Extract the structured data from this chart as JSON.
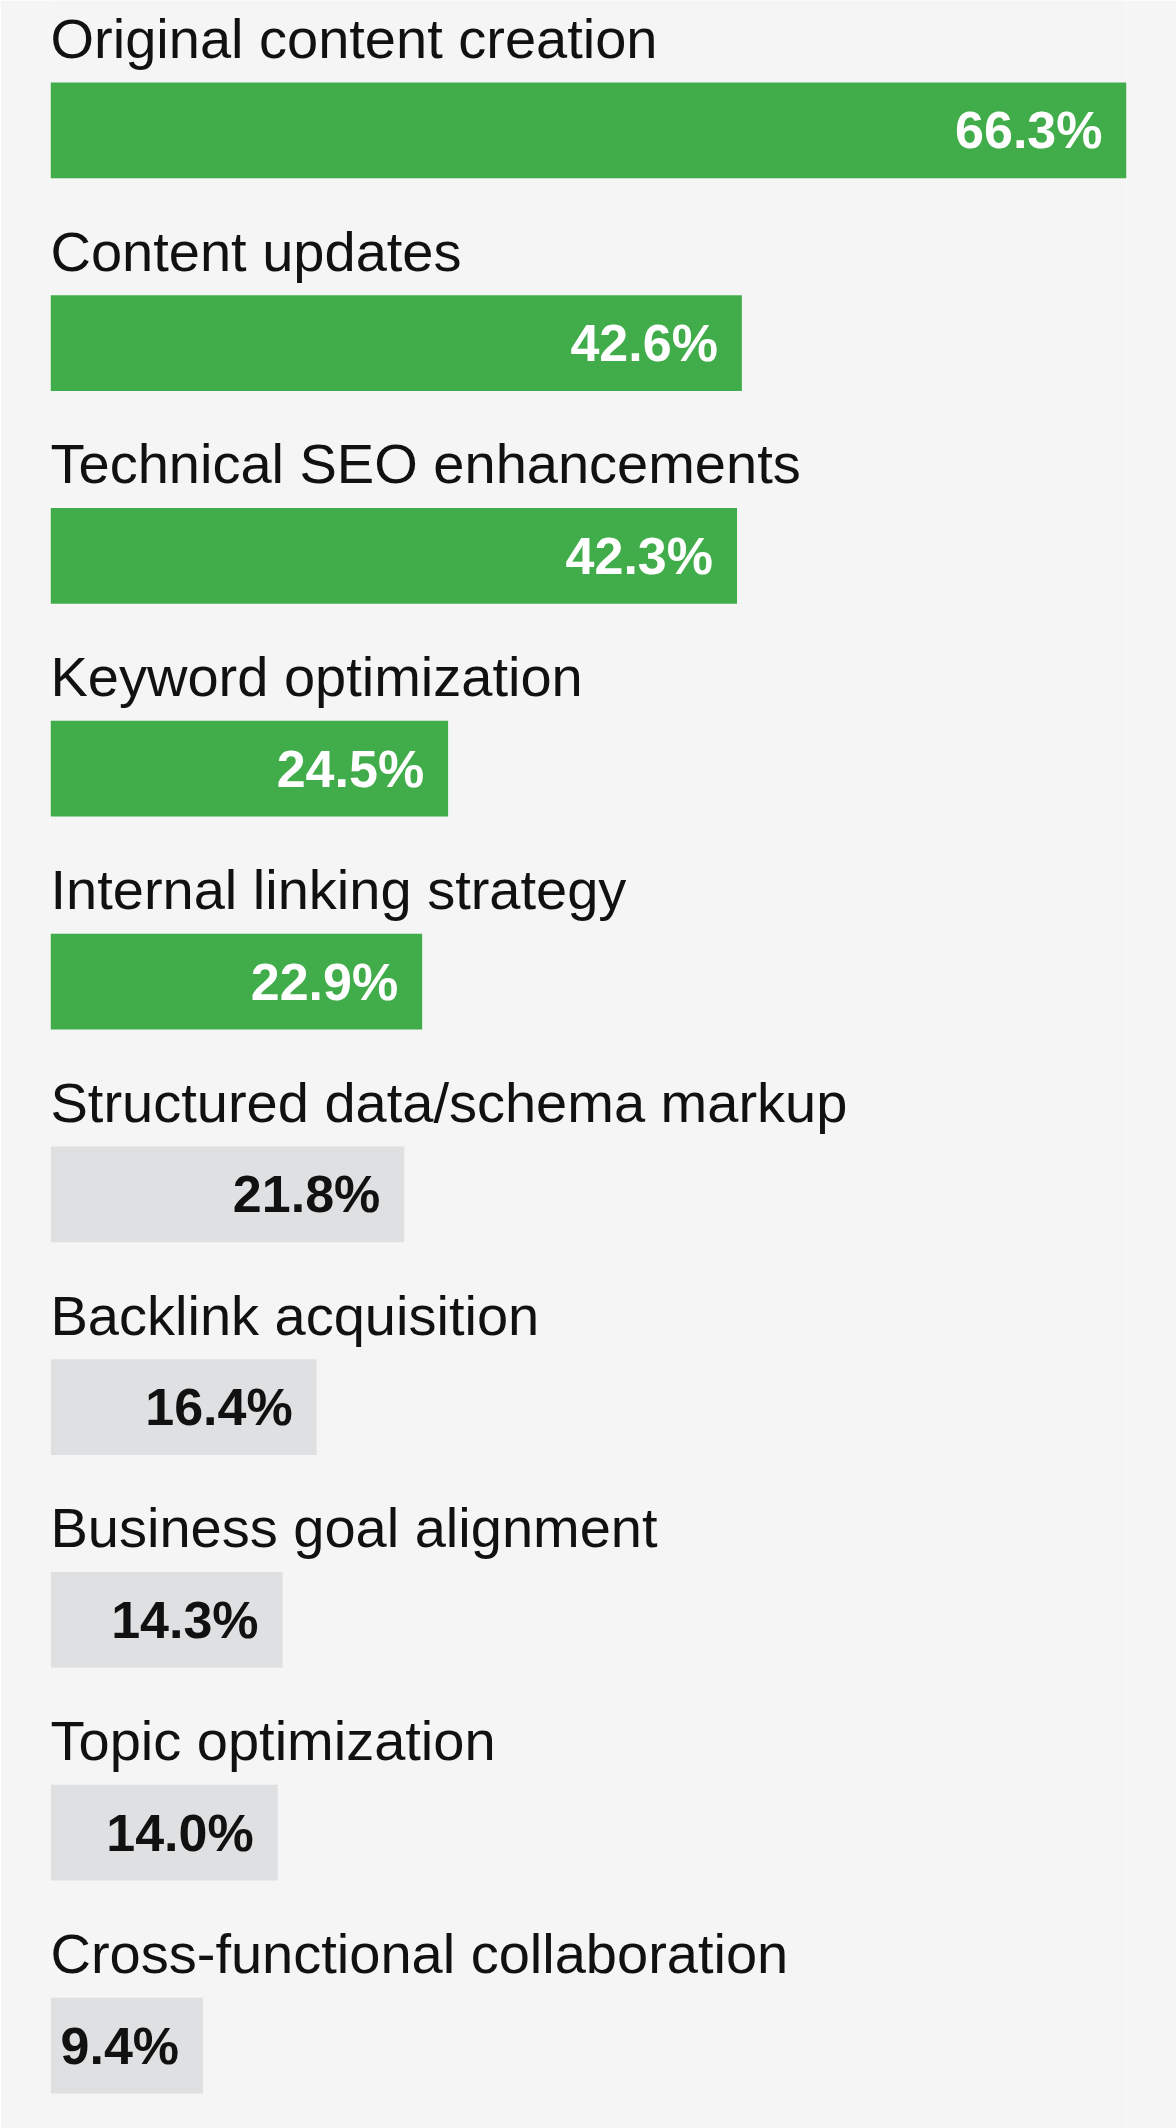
{
  "chart_data": {
    "type": "bar",
    "orientation": "horizontal",
    "categories": [
      "Original content creation",
      "Content updates",
      "Technical SEO enhancements",
      "Keyword optimization",
      "Internal linking strategy",
      "Structured data/schema markup",
      "Backlink acquisition",
      "Business goal alignment",
      "Topic optimization",
      "Cross-functional collaboration"
    ],
    "values": [
      66.3,
      42.6,
      42.3,
      24.5,
      22.9,
      21.8,
      16.4,
      14.3,
      14.0,
      9.4
    ],
    "colors": [
      "#41ad4a",
      "#41ad4a",
      "#41ad4a",
      "#41ad4a",
      "#41ad4a",
      "#dfe0e2",
      "#dfe0e2",
      "#dfe0e2",
      "#dfe0e2",
      "#dfe0e2"
    ],
    "value_labels": [
      "66.3%",
      "42.6%",
      "42.3%",
      "24.5%",
      "22.9%",
      "21.8%",
      "16.4%",
      "14.3%",
      "14.0%",
      "9.4%"
    ]
  }
}
